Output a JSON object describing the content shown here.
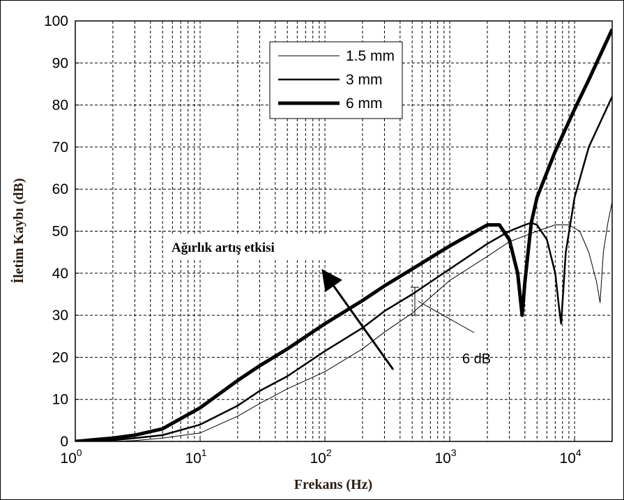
{
  "chart_data": {
    "type": "line",
    "x_scale": "log",
    "xlim": [
      1,
      20000
    ],
    "ylim": [
      0,
      100
    ],
    "xlabel": "Frekans (Hz)",
    "ylabel": "İletim Kaybı (dB)",
    "y_ticks": [
      "0",
      "10",
      "20",
      "30",
      "40",
      "50",
      "60",
      "70",
      "80",
      "90",
      "100"
    ],
    "x_ticks": [
      {
        "base": "10",
        "exp": "0"
      },
      {
        "base": "10",
        "exp": "1"
      },
      {
        "base": "10",
        "exp": "2"
      },
      {
        "base": "10",
        "exp": "3"
      },
      {
        "base": "10",
        "exp": "4"
      }
    ],
    "grid": true,
    "legend_position": "top-center",
    "series": [
      {
        "name": "1.5 mm",
        "stroke": "thin",
        "points": [
          [
            1,
            0
          ],
          [
            2,
            0
          ],
          [
            3,
            0.2
          ],
          [
            5,
            0.8
          ],
          [
            10,
            2
          ],
          [
            20,
            6
          ],
          [
            30,
            9
          ],
          [
            50,
            12.5
          ],
          [
            100,
            16.6
          ],
          [
            200,
            22
          ],
          [
            300,
            26
          ],
          [
            500,
            30.5
          ],
          [
            1000,
            38.3
          ],
          [
            2000,
            44
          ],
          [
            3000,
            47.5
          ],
          [
            5000,
            50
          ],
          [
            7000,
            51.5
          ],
          [
            9000,
            51.5
          ],
          [
            11000,
            50
          ],
          [
            13000,
            45
          ],
          [
            15000,
            38
          ],
          [
            16000,
            33
          ],
          [
            17000,
            45
          ],
          [
            18500,
            52
          ],
          [
            20000,
            57
          ]
        ]
      },
      {
        "name": "3 mm",
        "stroke": "medium",
        "points": [
          [
            1,
            0
          ],
          [
            2,
            0.3
          ],
          [
            3,
            0.8
          ],
          [
            5,
            1.5
          ],
          [
            10,
            4
          ],
          [
            20,
            8.5
          ],
          [
            30,
            12
          ],
          [
            50,
            15.5
          ],
          [
            100,
            21.5
          ],
          [
            200,
            27
          ],
          [
            300,
            31
          ],
          [
            500,
            35
          ],
          [
            1000,
            41
          ],
          [
            2000,
            47
          ],
          [
            3000,
            50
          ],
          [
            4000,
            51.5
          ],
          [
            4500,
            52
          ],
          [
            5000,
            51.5
          ],
          [
            6000,
            48
          ],
          [
            7000,
            40
          ],
          [
            7500,
            32
          ],
          [
            7800,
            28
          ],
          [
            8500,
            45
          ],
          [
            10000,
            58
          ],
          [
            13000,
            70
          ],
          [
            20000,
            82
          ]
        ]
      },
      {
        "name": "6 mm",
        "stroke": "thick",
        "points": [
          [
            1,
            0
          ],
          [
            2,
            0.8
          ],
          [
            3,
            1.5
          ],
          [
            5,
            3
          ],
          [
            10,
            8
          ],
          [
            20,
            14.5
          ],
          [
            30,
            18
          ],
          [
            50,
            22
          ],
          [
            100,
            28
          ],
          [
            200,
            33.5
          ],
          [
            300,
            37
          ],
          [
            500,
            41
          ],
          [
            1000,
            46.5
          ],
          [
            2000,
            51.5
          ],
          [
            2500,
            51.5
          ],
          [
            3000,
            48
          ],
          [
            3500,
            40
          ],
          [
            3800,
            30
          ],
          [
            4000,
            38
          ],
          [
            4500,
            52
          ],
          [
            5000,
            58
          ],
          [
            7000,
            69
          ],
          [
            10000,
            79
          ],
          [
            13000,
            86
          ],
          [
            20000,
            98
          ]
        ]
      }
    ],
    "annotations": [
      {
        "text": "Ağırlık artış etkisi",
        "arrow": true
      },
      {
        "text": "6 dB",
        "arrow": true
      }
    ]
  }
}
